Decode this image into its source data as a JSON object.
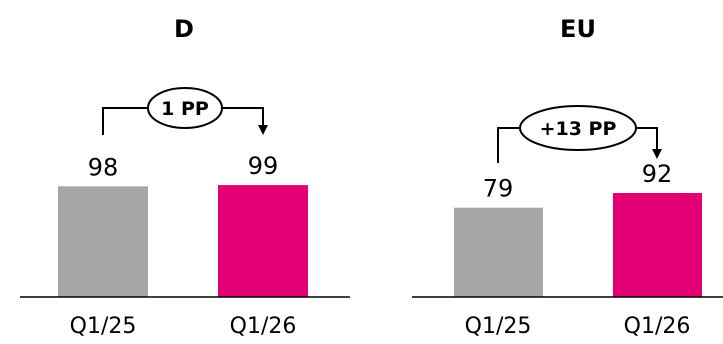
{
  "chart_data": [
    {
      "type": "bar",
      "title": "D",
      "categories": [
        "Q1/25",
        "Q1/26"
      ],
      "values": [
        98,
        99
      ],
      "colors": [
        "#a6a6a6",
        "#e20074"
      ],
      "annotation": "1 PP",
      "axis_line": true,
      "grid": false
    },
    {
      "type": "bar",
      "title": "EU",
      "categories": [
        "Q1/25",
        "Q1/26"
      ],
      "values": [
        79,
        92
      ],
      "colors": [
        "#a6a6a6",
        "#e20074"
      ],
      "annotation": "+13 PP",
      "axis_line": true,
      "grid": false
    }
  ]
}
